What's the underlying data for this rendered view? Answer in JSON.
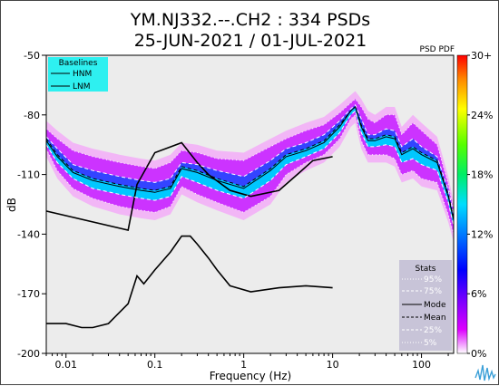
{
  "chart_data": {
    "type": "heatmap",
    "title": "YM.NJ332.--.CH2 : 334 PSDs",
    "subtitle": "25-JUN-2021 / 01-JUL-2021",
    "xlabel": "Frequency (Hz)",
    "ylabel": "dB",
    "xscale": "log",
    "xlim": [
      0.006,
      230
    ],
    "ylim": [
      -200,
      -50
    ],
    "x_ticks": [
      {
        "value": 0.01,
        "label": "0.01"
      },
      {
        "value": 0.1,
        "label": "0.1"
      },
      {
        "value": 1,
        "label": "1"
      },
      {
        "value": 10,
        "label": "10"
      },
      {
        "value": 100,
        "label": "100"
      }
    ],
    "y_ticks": [
      {
        "value": -50,
        "label": "-50"
      },
      {
        "value": -80,
        "label": "-80"
      },
      {
        "value": -110,
        "label": "-110"
      },
      {
        "value": -140,
        "label": "-140"
      },
      {
        "value": -170,
        "label": "-170"
      },
      {
        "value": -200,
        "label": "-200"
      }
    ],
    "grid": false,
    "colorbar": {
      "label": "PSD PDF",
      "ticks": [
        "30+",
        "24%",
        "18%",
        "12%",
        "6%",
        "0%"
      ],
      "colors": [
        "#ff0000",
        "#ff8800",
        "#ffff00",
        "#88ff00",
        "#00ee00",
        "#00dd88",
        "#00ddff",
        "#0088ff",
        "#0000ff",
        "#6600ff",
        "#cc00ff",
        "#ff88ff",
        "#ffffff"
      ]
    },
    "baselines_legend": {
      "title": "Baselines",
      "items": [
        "HNM",
        "LNM"
      ],
      "background": "#2ef0f0",
      "placement": "top-left"
    },
    "stats_legend": {
      "title": "Stats",
      "items": [
        "95%",
        "75%",
        "Mode",
        "Mean",
        "25%",
        "5%"
      ],
      "background": "#c8c4d8",
      "placement": "bottom-right"
    },
    "series": [
      {
        "name": "HNM",
        "style": "solid",
        "color": "#000000",
        "x": [
          0.0055,
          0.05,
          0.063,
          0.1,
          0.2,
          0.3,
          0.4,
          0.7,
          1.2,
          2.5,
          4,
          6,
          10
        ],
        "y": [
          -128,
          -138,
          -115,
          -99,
          -94,
          -104,
          -110,
          -118,
          -121,
          -118,
          -110,
          -103,
          -101
        ]
      },
      {
        "name": "LNM",
        "style": "solid",
        "color": "#000000",
        "x": [
          0.0055,
          0.01,
          0.015,
          0.02,
          0.03,
          0.05,
          0.063,
          0.075,
          0.1,
          0.15,
          0.2,
          0.25,
          0.3,
          0.4,
          0.5,
          0.7,
          1.2,
          2.5,
          5,
          10
        ],
        "y": [
          -185,
          -185,
          -187,
          -187,
          -185,
          -175,
          -161,
          -165,
          -158,
          -149,
          -141,
          -141,
          -145,
          -152,
          -158,
          -166,
          -169,
          -167,
          -166,
          -167
        ]
      },
      {
        "name": "95%",
        "style": "dotted",
        "color": "#ffffff",
        "x": [
          0.006,
          0.008,
          0.012,
          0.02,
          0.04,
          0.07,
          0.1,
          0.15,
          0.2,
          0.3,
          0.5,
          1,
          2,
          3,
          5,
          8,
          12,
          16,
          18,
          21,
          25,
          30,
          40,
          50,
          60,
          80,
          100,
          150,
          200,
          230
        ],
        "y": [
          -87,
          -92,
          -98,
          -101,
          -104,
          -106,
          -107,
          -104,
          -98,
          -99,
          -102,
          -103,
          -96,
          -92,
          -88,
          -85,
          -79,
          -74,
          -72,
          -76,
          -82,
          -84,
          -80,
          -80,
          -90,
          -84,
          -88,
          -95,
          -115,
          -128
        ]
      },
      {
        "name": "75%",
        "style": "dashed",
        "color": "#ffffff",
        "x": [
          0.006,
          0.008,
          0.012,
          0.02,
          0.04,
          0.07,
          0.1,
          0.15,
          0.2,
          0.3,
          0.5,
          1,
          2,
          3,
          5,
          8,
          12,
          16,
          18,
          21,
          25,
          30,
          40,
          50,
          60,
          80,
          100,
          150,
          200,
          230
        ],
        "y": [
          -91,
          -97,
          -105,
          -108,
          -111,
          -113,
          -114,
          -112,
          -104,
          -105,
          -108,
          -111,
          -103,
          -97,
          -94,
          -90,
          -83,
          -77,
          -75,
          -82,
          -90,
          -90,
          -87,
          -88,
          -96,
          -92,
          -96,
          -101,
          -118,
          -130
        ]
      },
      {
        "name": "Mode",
        "style": "solid",
        "color": "#000000",
        "x": [
          0.006,
          0.008,
          0.012,
          0.02,
          0.04,
          0.07,
          0.1,
          0.15,
          0.2,
          0.3,
          0.5,
          1,
          2,
          3,
          5,
          8,
          12,
          16,
          18,
          21,
          25,
          30,
          40,
          50,
          60,
          80,
          100,
          150,
          200,
          230
        ],
        "y": [
          -93,
          -101,
          -109,
          -113,
          -116,
          -118,
          -119,
          -117,
          -107,
          -109,
          -113,
          -117,
          -108,
          -101,
          -98,
          -94,
          -86,
          -78,
          -76,
          -86,
          -93,
          -93,
          -91,
          -92,
          -100,
          -97,
          -100,
          -104,
          -121,
          -133
        ]
      },
      {
        "name": "Mean",
        "style": "dashed",
        "color": "#000000",
        "x": [
          0.006,
          0.008,
          0.012,
          0.02,
          0.04,
          0.07,
          0.1,
          0.15,
          0.2,
          0.3,
          0.5,
          1,
          2,
          3,
          5,
          8,
          12,
          16,
          18,
          21,
          25,
          30,
          40,
          50,
          60,
          80,
          100,
          150,
          200,
          230
        ],
        "y": [
          -92,
          -100,
          -108,
          -112,
          -115,
          -117,
          -118,
          -116,
          -106,
          -108,
          -112,
          -116,
          -107,
          -100,
          -97,
          -93,
          -85,
          -78,
          -76,
          -85,
          -92,
          -92,
          -90,
          -91,
          -99,
          -96,
          -99,
          -103,
          -120,
          -132
        ]
      },
      {
        "name": "25%",
        "style": "dashed",
        "color": "#ffffff",
        "x": [
          0.006,
          0.008,
          0.012,
          0.02,
          0.04,
          0.07,
          0.1,
          0.15,
          0.2,
          0.3,
          0.5,
          1,
          2,
          3,
          5,
          8,
          12,
          16,
          18,
          21,
          25,
          30,
          40,
          50,
          60,
          80,
          100,
          150,
          200,
          230
        ],
        "y": [
          -95,
          -104,
          -112,
          -117,
          -120,
          -122,
          -123,
          -121,
          -111,
          -114,
          -118,
          -122,
          -113,
          -105,
          -101,
          -97,
          -89,
          -80,
          -78,
          -89,
          -96,
          -96,
          -95,
          -96,
          -104,
          -102,
          -105,
          -108,
          -124,
          -136
        ]
      },
      {
        "name": "5%",
        "style": "dotted",
        "color": "#ffffff",
        "x": [
          0.006,
          0.008,
          0.012,
          0.02,
          0.04,
          0.07,
          0.1,
          0.15,
          0.2,
          0.3,
          0.5,
          1,
          2,
          3,
          5,
          8,
          12,
          16,
          18,
          21,
          25,
          30,
          40,
          50,
          60,
          80,
          100,
          150,
          200,
          230
        ],
        "y": [
          -97,
          -108,
          -117,
          -122,
          -126,
          -128,
          -129,
          -126,
          -116,
          -120,
          -124,
          -129,
          -121,
          -110,
          -104,
          -100,
          -92,
          -82,
          -80,
          -93,
          -100,
          -100,
          -100,
          -102,
          -110,
          -108,
          -112,
          -114,
          -130,
          -140
        ]
      }
    ]
  }
}
